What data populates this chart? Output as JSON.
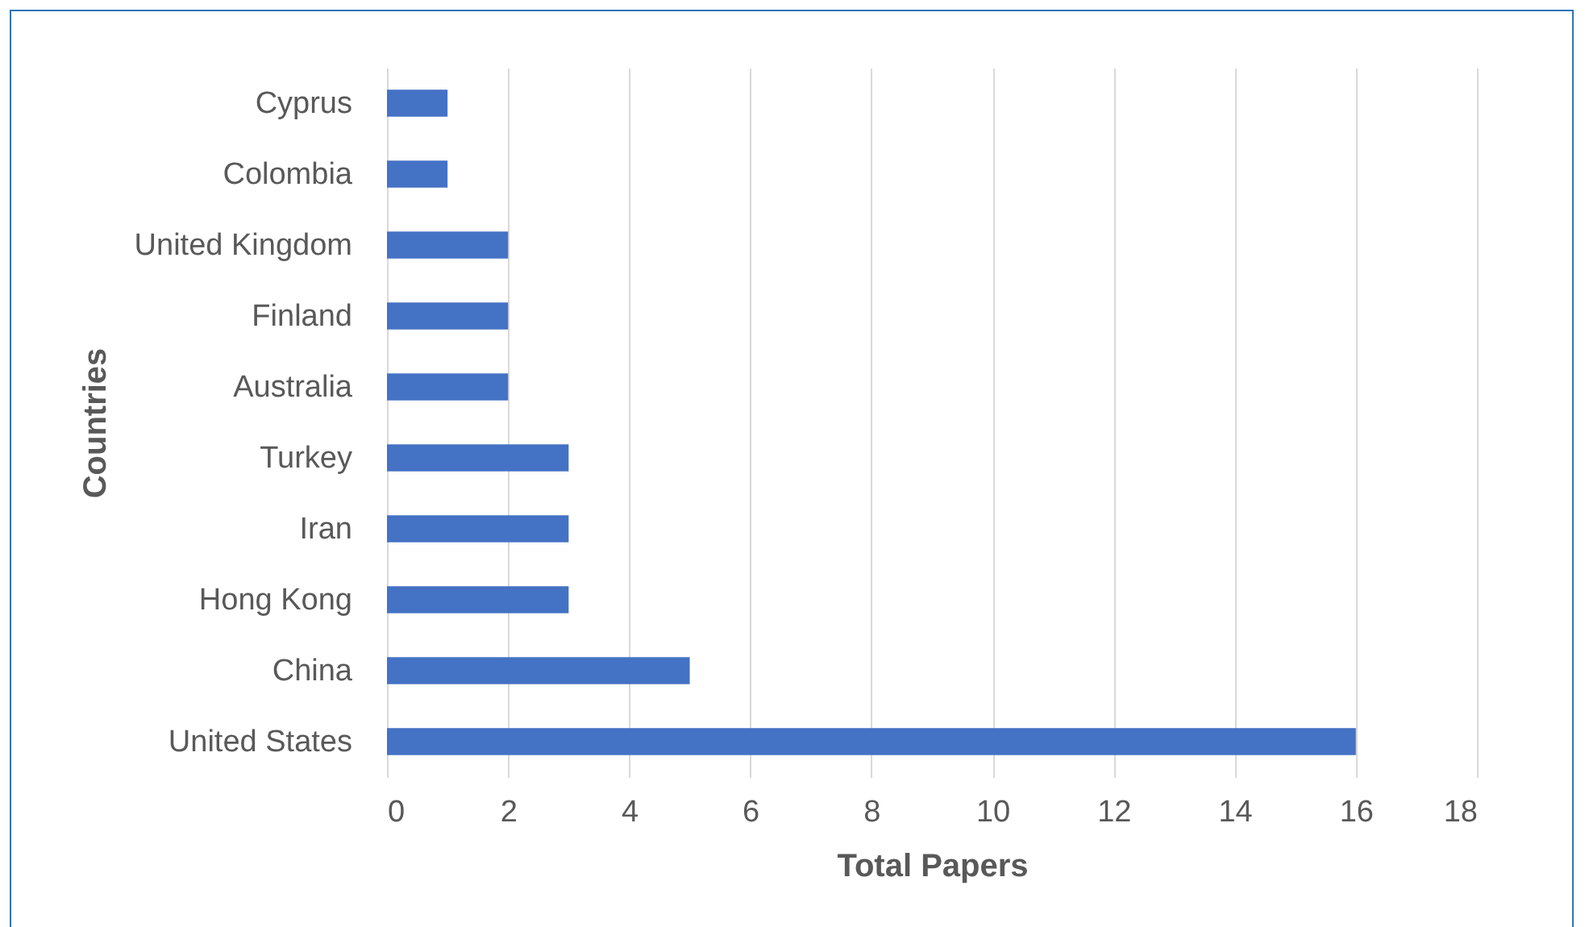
{
  "chart_data": {
    "type": "bar",
    "orientation": "horizontal",
    "xlabel": "Total Papers",
    "ylabel": "Countries",
    "categories": [
      "Cyprus",
      "Colombia",
      "United Kingdom",
      "Finland",
      "Australia",
      "Turkey",
      "Iran",
      "Hong Kong",
      "China",
      "United States"
    ],
    "values": [
      1,
      1,
      2,
      2,
      2,
      3,
      3,
      3,
      5,
      16
    ],
    "color": "#4472c4",
    "xlim": [
      0,
      18
    ],
    "xticks": [
      0,
      2,
      4,
      6,
      8,
      10,
      12,
      14,
      16,
      18
    ],
    "grid": "x"
  }
}
